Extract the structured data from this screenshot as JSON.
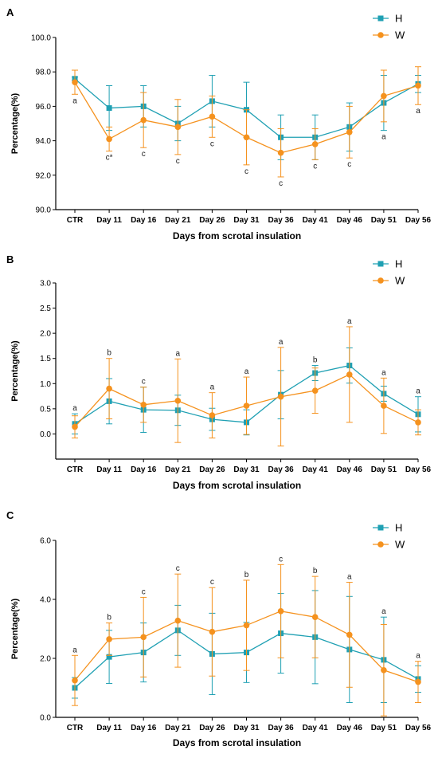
{
  "colors": {
    "H": "#1fa0b3",
    "W": "#f5921e"
  },
  "chart_data": [
    {
      "panel": "A",
      "type": "line",
      "xlabel": "Days from scrotal insulation",
      "ylabel": "Percentage(%)",
      "ylim": [
        90,
        100
      ],
      "yticks": [
        90,
        92,
        94,
        96,
        98,
        100
      ],
      "ytick_labels": [
        "90.0",
        "92.0",
        "94.0",
        "96.0",
        "98.0",
        "100.0"
      ],
      "categories": [
        "CTR",
        "Day 11",
        "Day 16",
        "Day 21",
        "Day 26",
        "Day 31",
        "Day 36",
        "Day 41",
        "Day 46",
        "Day 51",
        "Day 56"
      ],
      "legend": "top-right",
      "series": [
        {
          "name": "H",
          "marker": "square",
          "values": [
            97.6,
            95.9,
            96.0,
            95.0,
            96.3,
            95.8,
            94.2,
            94.2,
            94.8,
            96.2,
            97.3
          ],
          "error": [
            0.1,
            1.3,
            1.2,
            1.0,
            1.5,
            1.6,
            1.3,
            1.3,
            1.4,
            1.6,
            0.5
          ]
        },
        {
          "name": "W",
          "marker": "circle",
          "values": [
            97.4,
            94.1,
            95.2,
            94.8,
            95.4,
            94.2,
            93.3,
            93.8,
            94.5,
            96.6,
            97.2
          ],
          "error": [
            0.7,
            0.7,
            1.6,
            1.6,
            1.2,
            1.6,
            1.4,
            0.9,
            1.5,
            1.5,
            1.1
          ]
        }
      ],
      "annotations": [
        "a",
        "c*",
        "c",
        "c",
        "c",
        "c",
        "c",
        "c",
        "c",
        "a",
        "a"
      ]
    },
    {
      "panel": "B",
      "type": "line",
      "xlabel": "Days from scrotal insulation",
      "ylabel": "Percentage(%)",
      "ylim": [
        -0.5,
        3.0
      ],
      "yticks": [
        0,
        0.5,
        1.0,
        1.5,
        2.0,
        2.5,
        3.0
      ],
      "ytick_labels": [
        "0.0",
        "0.5",
        "1.0",
        "1.5",
        "2.0",
        "2.5",
        "3.0"
      ],
      "categories": [
        "CTR",
        "Day 11",
        "Day 16",
        "Day 21",
        "Day 26",
        "Day 31",
        "Day 36",
        "Day 41",
        "Day 46",
        "Day 51",
        "Day 56"
      ],
      "legend": "top-right",
      "series": [
        {
          "name": "H",
          "marker": "square",
          "values": [
            0.2,
            0.65,
            0.48,
            0.47,
            0.29,
            0.23,
            0.78,
            1.21,
            1.36,
            0.8,
            0.39
          ],
          "error": [
            0.2,
            0.45,
            0.45,
            0.3,
            0.22,
            0.25,
            0.48,
            0.15,
            0.35,
            0.15,
            0.35
          ]
        },
        {
          "name": "W",
          "marker": "circle",
          "values": [
            0.14,
            0.9,
            0.58,
            0.66,
            0.37,
            0.56,
            0.74,
            0.86,
            1.18,
            0.56,
            0.23
          ],
          "error": [
            0.22,
            0.6,
            0.35,
            0.83,
            0.45,
            0.57,
            0.98,
            0.45,
            0.95,
            0.55,
            0.25
          ]
        }
      ],
      "annotations": [
        "a",
        "b",
        "c",
        "a",
        "a",
        "a",
        "a",
        "b",
        "a",
        "a",
        "a"
      ]
    },
    {
      "panel": "C",
      "type": "line",
      "xlabel": "Days from scrotal insulation",
      "ylabel": "Percentage(%)",
      "ylim": [
        0,
        6
      ],
      "yticks": [
        0,
        2,
        4,
        6
      ],
      "ytick_labels": [
        "0.0",
        "2.0",
        "4.0",
        "6.0"
      ],
      "categories": [
        "CTR",
        "Day 11",
        "Day 16",
        "Day 21",
        "Day 26",
        "Day 31",
        "Day 36",
        "Day 41",
        "Day 46",
        "Day 51",
        "Day 56"
      ],
      "legend": "top-right",
      "series": [
        {
          "name": "H",
          "marker": "square",
          "values": [
            1.0,
            2.05,
            2.2,
            2.95,
            2.15,
            2.2,
            2.85,
            2.72,
            2.3,
            1.95,
            1.3
          ],
          "error": [
            0.35,
            0.9,
            1.0,
            0.85,
            1.38,
            1.02,
            1.35,
            1.58,
            1.8,
            1.45,
            0.45
          ]
        },
        {
          "name": "W",
          "marker": "circle",
          "values": [
            1.25,
            2.65,
            2.72,
            3.28,
            2.9,
            3.12,
            3.6,
            3.4,
            2.8,
            1.6,
            1.2
          ],
          "error": [
            0.85,
            0.55,
            1.35,
            1.58,
            1.5,
            1.53,
            1.58,
            1.38,
            1.78,
            1.55,
            0.7
          ]
        }
      ],
      "annotations": [
        "a",
        "b",
        "c",
        "c",
        "c",
        "b",
        "c",
        "b",
        "a",
        "a",
        "a"
      ]
    }
  ]
}
